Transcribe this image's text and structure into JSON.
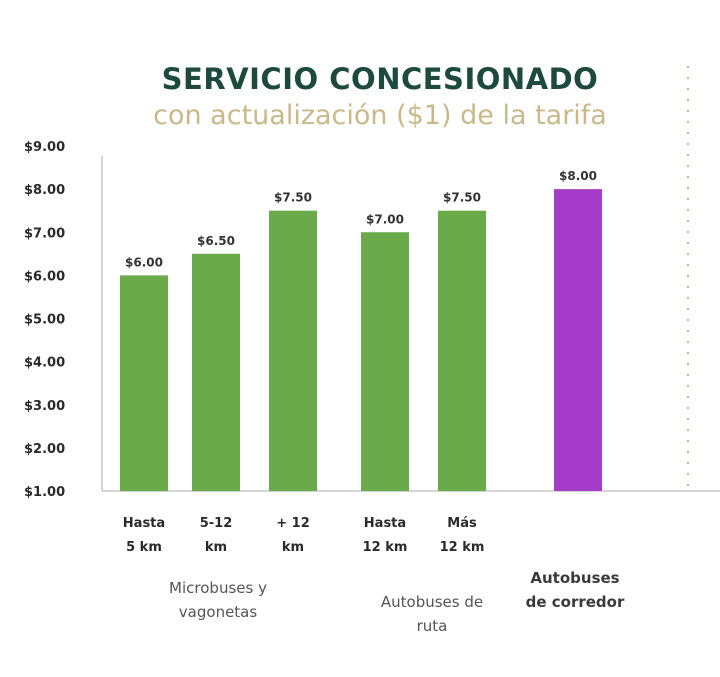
{
  "chart_data": {
    "type": "bar",
    "title": "SERVICIO CONCESIONADO",
    "subtitle": "con actualización ($1) de la tarifa",
    "ylim": [
      1,
      9
    ],
    "ytick_labels": [
      "$1.00",
      "$2.00",
      "$3.00",
      "$4.00",
      "$5.00",
      "$6.00",
      "$7.00",
      "$8.00",
      "$9.00"
    ],
    "bars": [
      {
        "category": [
          "Hasta",
          "5 km"
        ],
        "value": 6.0,
        "label": "$6.00",
        "color": "#6aaa4a"
      },
      {
        "category": [
          "5-12",
          "km"
        ],
        "value": 6.5,
        "label": "$6.50",
        "color": "#6aaa4a"
      },
      {
        "category": [
          "+ 12",
          "km"
        ],
        "value": 7.5,
        "label": "$7.50",
        "color": "#6aaa4a"
      },
      {
        "category": [
          "Hasta",
          "12 km"
        ],
        "value": 7.0,
        "label": "$7.00",
        "color": "#6aaa4a"
      },
      {
        "category": [
          "Más",
          "12 km"
        ],
        "value": 7.5,
        "label": "$7.50",
        "color": "#6aaa4a"
      },
      {
        "category": [
          "",
          ""
        ],
        "value": 8.0,
        "label": "$8.00",
        "color": "#a43bc9"
      }
    ],
    "groups": [
      {
        "lines": [
          "Microbuses y",
          "vagonetas"
        ],
        "bold": false
      },
      {
        "lines": [
          "Autobuses de",
          "ruta"
        ],
        "bold": false
      },
      {
        "lines": [
          "Autobuses",
          "de corredor"
        ],
        "bold": true
      }
    ]
  }
}
